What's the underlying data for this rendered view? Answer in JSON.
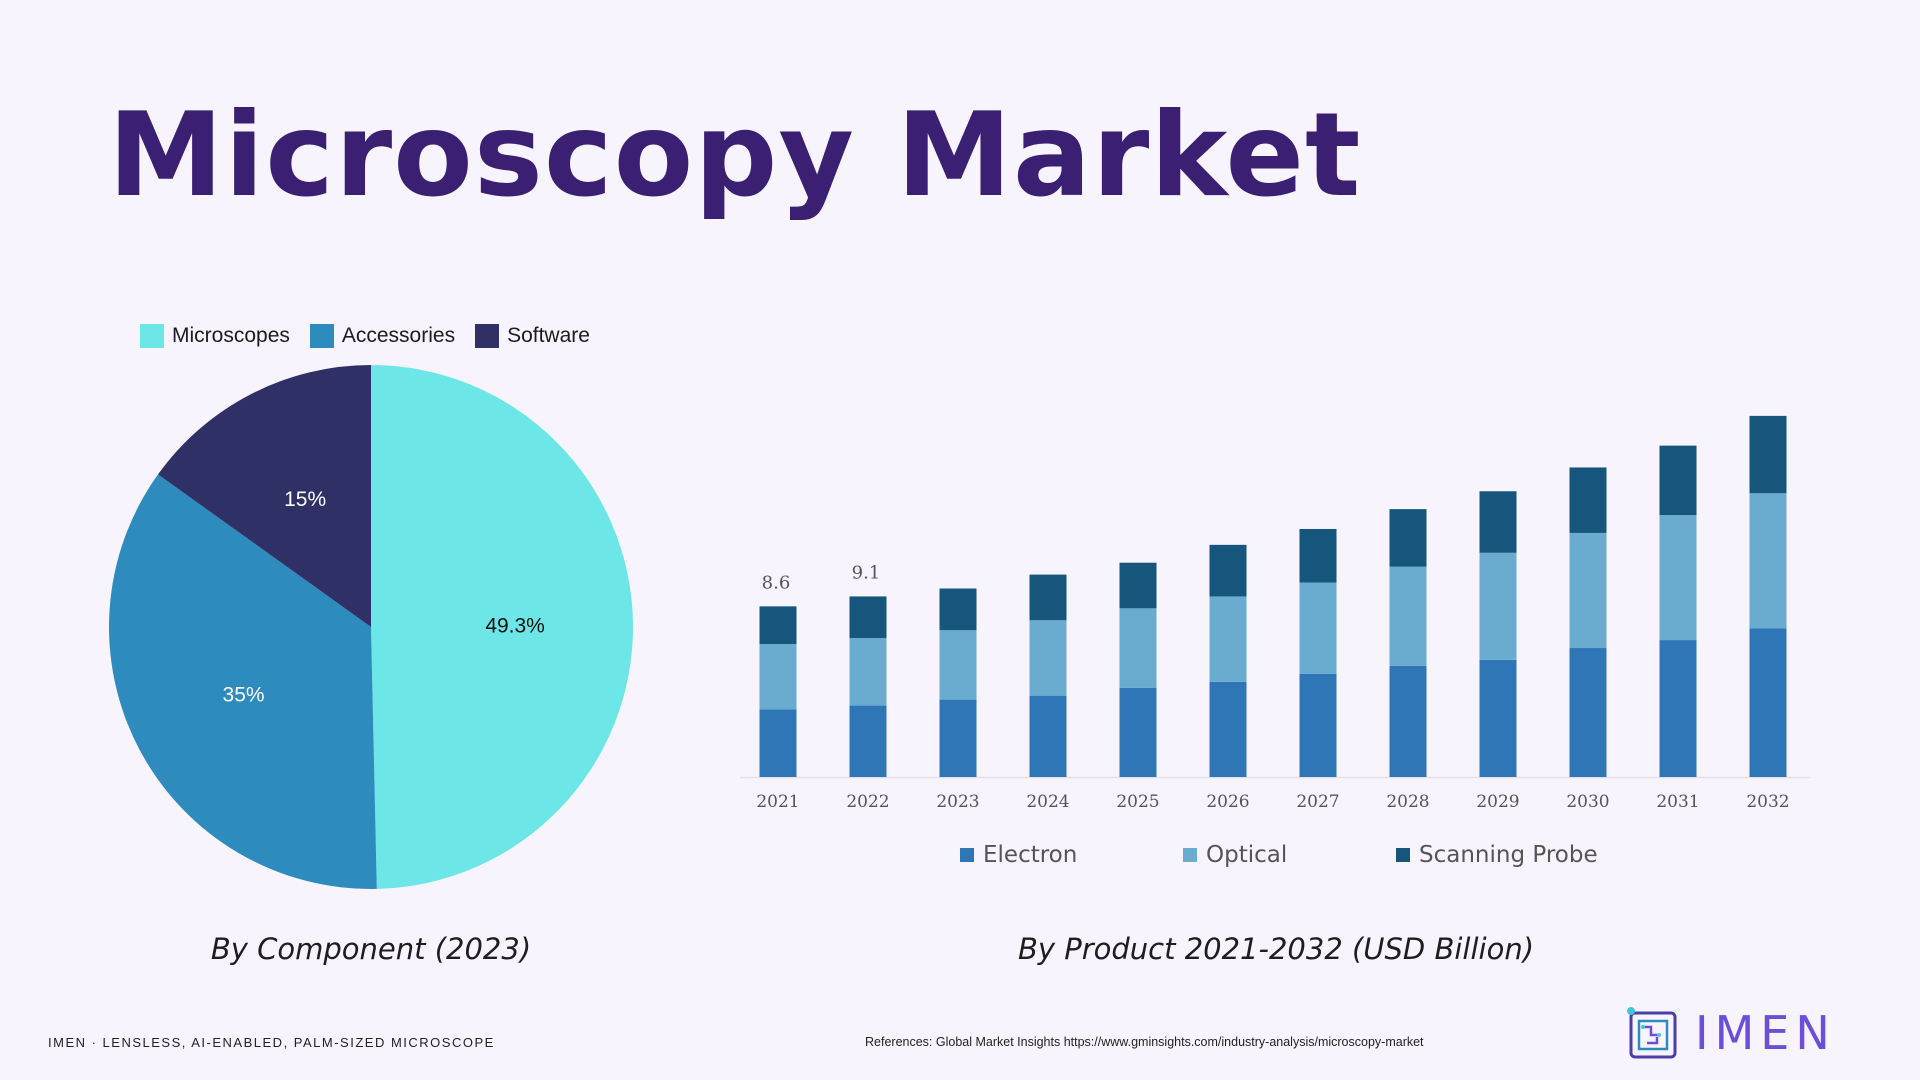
{
  "title": "Microscopy Market",
  "colors": {
    "title": "#3a1f73",
    "microscopes": "#6de6e8",
    "accessories": "#2e8bbd",
    "software": "#2f3066",
    "electron": "#2f76b7",
    "optical": "#6aacd0",
    "scanning_probe": "#16567d",
    "logo": "#6b4fd8"
  },
  "chart_data": [
    {
      "type": "pie",
      "title": "By Component (2023)",
      "legend_position": "top-left",
      "slices": [
        {
          "name": "Microscopes",
          "value": 49.3,
          "label": "49.3%",
          "color": "#6de6e8"
        },
        {
          "name": "Accessories",
          "value": 35,
          "label": "35%",
          "color": "#2e8bbd"
        },
        {
          "name": "Software",
          "value": 15,
          "label": "15%",
          "color": "#2f3066"
        }
      ]
    },
    {
      "type": "bar",
      "stacked": true,
      "title": "By Product 2021-2032 (USD Billion)",
      "legend_position": "bottom",
      "categories": [
        "2021",
        "2022",
        "2023",
        "2024",
        "2025",
        "2026",
        "2027",
        "2028",
        "2029",
        "2030",
        "2031",
        "2032"
      ],
      "ylim": [
        0,
        19
      ],
      "series": [
        {
          "name": "Electron",
          "color": "#2f76b7",
          "values": [
            3.4,
            3.6,
            3.9,
            4.1,
            4.5,
            4.8,
            5.2,
            5.6,
            5.9,
            6.5,
            6.9,
            7.5
          ]
        },
        {
          "name": "Optical",
          "color": "#6aacd0",
          "values": [
            3.3,
            3.4,
            3.5,
            3.8,
            4.0,
            4.3,
            4.6,
            5.0,
            5.4,
            5.8,
            6.3,
            6.8
          ]
        },
        {
          "name": "Scanning Probe",
          "color": "#16567d",
          "values": [
            1.9,
            2.1,
            2.1,
            2.3,
            2.3,
            2.6,
            2.7,
            2.9,
            3.1,
            3.3,
            3.5,
            3.9
          ]
        }
      ],
      "data_labels": [
        {
          "category": "2021",
          "text": "8.6"
        },
        {
          "category": "2022",
          "text": "9.1"
        }
      ]
    }
  ],
  "footer": {
    "left": "IMEN · LENSLESS, AI-ENABLED, PALM-SIZED MICROSCOPE",
    "reference": "References: Global Market Insights https://www.gminsights.com/industry-analysis/microscopy-market",
    "logo_text": "IMEN"
  }
}
